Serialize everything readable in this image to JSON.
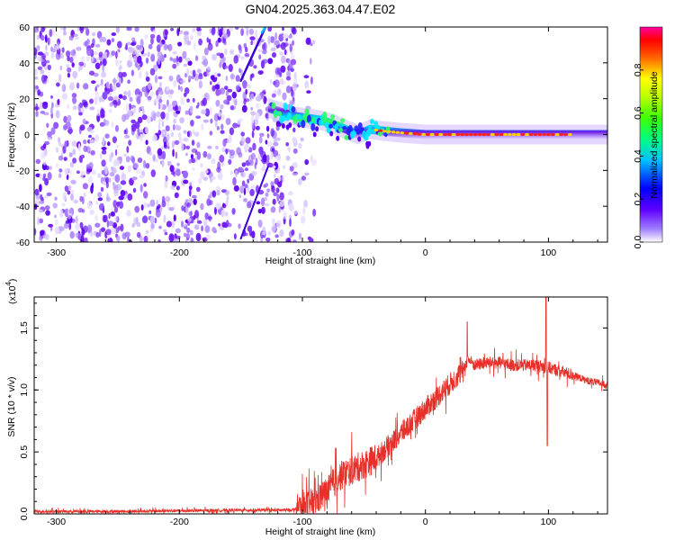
{
  "title": "GN04.2025.363.04.47.E02",
  "chart_data": [
    {
      "type": "heatmap",
      "name": "spectrogram",
      "xlabel": "Height of straight line (km)",
      "ylabel": "Frequency (Hz)",
      "xlim": [
        -318,
        148
      ],
      "ylim": [
        -60,
        60
      ],
      "xticks": [
        -300,
        -200,
        -100,
        0,
        100
      ],
      "yticks": [
        60,
        40,
        20,
        0,
        -20,
        -40,
        -60
      ],
      "noise_region_x": [
        -318,
        -105
      ],
      "noise_density": "dense",
      "signal_band": {
        "x": [
          -128,
          -115,
          -105,
          -95,
          -85,
          -75,
          -65,
          -55,
          -45,
          -35,
          -20,
          0,
          50,
          100,
          148
        ],
        "freq_center_hz": [
          15,
          12,
          10,
          9,
          8,
          6,
          3,
          0,
          3,
          2,
          1,
          0,
          0,
          0,
          0
        ],
        "amplitude": [
          0.3,
          0.4,
          0.45,
          0.5,
          0.4,
          0.5,
          0.35,
          0.6,
          0.7,
          0.75,
          0.8,
          0.85,
          0.9,
          0.9,
          0.7
        ]
      },
      "upper_streak": {
        "x": [
          -150,
          -130
        ],
        "freq_hz": [
          30,
          60
        ]
      },
      "colorbar": {
        "label": "Normalized spectral amplitude",
        "range": [
          0.0,
          1.0
        ],
        "ticks": [
          0.0,
          0.2,
          0.4,
          0.6,
          0.8
        ],
        "colormap": [
          "#ffffff",
          "#8800ff",
          "#0000ff",
          "#00ffff",
          "#00ff00",
          "#ffff00",
          "#ff0000",
          "#ff0088"
        ]
      }
    },
    {
      "type": "line",
      "name": "snr",
      "xlabel": "Height of straight line (km)",
      "ylabel": "SNR (10 * v/v)",
      "scale_label": "(x10",
      "scale_exp": "4",
      "xlim": [
        -318,
        148
      ],
      "ylim": [
        0,
        1.75
      ],
      "xticks": [
        -300,
        -200,
        -100,
        0,
        100
      ],
      "yticks": [
        0.0,
        0.5,
        1.0,
        1.5
      ],
      "ytick_labels": [
        "0.0",
        "0.5",
        "1.0",
        "1.5"
      ],
      "line_color": "#e8302a",
      "series": [
        {
          "name": "SNR envelope",
          "x": [
            -318,
            -250,
            -150,
            -110,
            -100,
            -90,
            -80,
            -70,
            -60,
            -50,
            -40,
            -30,
            -20,
            -10,
            0,
            10,
            20,
            30,
            35,
            40,
            50,
            60,
            70,
            80,
            90,
            100,
            110,
            120,
            130,
            148
          ],
          "y": [
            0.02,
            0.02,
            0.03,
            0.03,
            0.05,
            0.1,
            0.18,
            0.3,
            0.35,
            0.4,
            0.45,
            0.55,
            0.65,
            0.75,
            0.85,
            0.95,
            1.05,
            1.15,
            1.25,
            1.2,
            1.22,
            1.22,
            1.2,
            1.2,
            1.2,
            1.18,
            1.15,
            1.12,
            1.08,
            1.04
          ]
        }
      ],
      "peaks": [
        {
          "x": 34,
          "y": 1.55
        },
        {
          "x": 98,
          "y": 1.75
        },
        {
          "x": 99,
          "y": 0.55
        }
      ]
    }
  ]
}
